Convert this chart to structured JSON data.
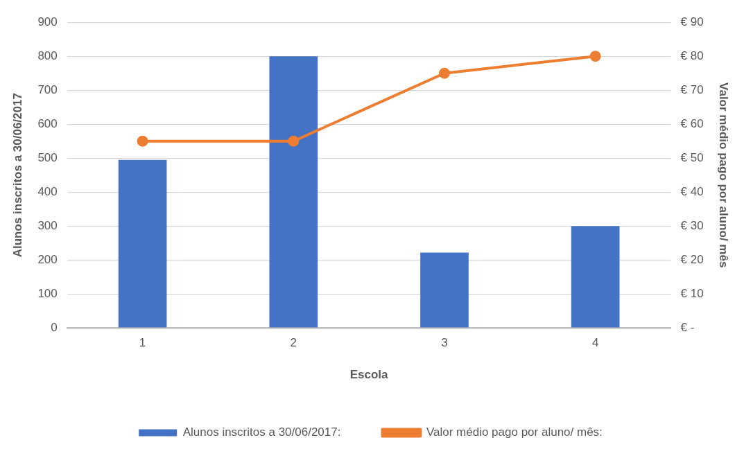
{
  "chart_data": {
    "type": "bar",
    "xlabel": "Escola",
    "ylabel": "Alunos inscritos a 30/06/2017",
    "y2label": "Valor médio pago por aluno/ mês",
    "categories": [
      "1",
      "2",
      "3",
      "4"
    ],
    "series": [
      {
        "name": "Alunos inscritos a 30/06/2017:",
        "color": "#4472c4",
        "values": [
          495,
          800,
          222,
          300
        ]
      },
      {
        "name": "Valor médio pago por aluno/ mês:",
        "type": "line",
        "axis": "y2",
        "color": "#ed7d31",
        "values": [
          55,
          55,
          75,
          80
        ]
      }
    ],
    "ylim": [
      0,
      900
    ],
    "yticks": [
      0,
      100,
      200,
      300,
      400,
      500,
      600,
      700,
      800,
      900
    ],
    "y2lim": [
      0,
      90
    ],
    "y2ticks": [
      {
        "value": 0,
        "label": "€ -"
      },
      {
        "value": 10,
        "label": "€ 10"
      },
      {
        "value": 20,
        "label": "€ 20"
      },
      {
        "value": 30,
        "label": "€ 30"
      },
      {
        "value": 40,
        "label": "€ 40"
      },
      {
        "value": 50,
        "label": "€ 50"
      },
      {
        "value": 60,
        "label": "€ 60"
      },
      {
        "value": 70,
        "label": "€ 70"
      },
      {
        "value": 80,
        "label": "€ 80"
      },
      {
        "value": 90,
        "label": "€ 90"
      }
    ],
    "grid": "y",
    "legend": "bottom",
    "marker": "circle",
    "line_style": "solid"
  }
}
